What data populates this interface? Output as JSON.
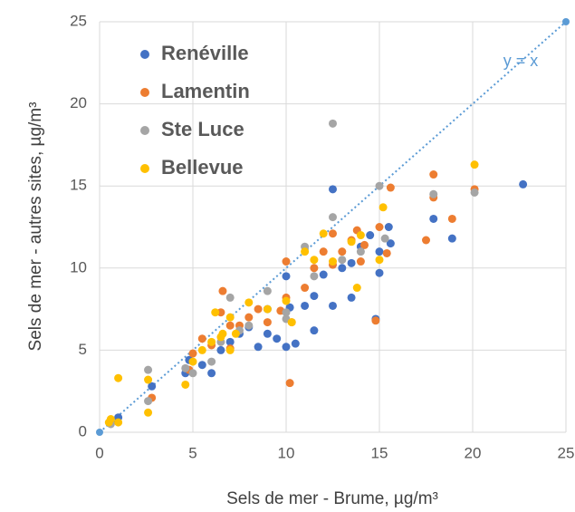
{
  "chart_data": {
    "type": "scatter",
    "xlabel": "Sels de mer - Brume, µg/m³",
    "ylabel": "Sels de mer - autres sites, µg/m³",
    "xlim": [
      0,
      25
    ],
    "ylim": [
      0,
      25
    ],
    "xticks": [
      0,
      5,
      10,
      15,
      20,
      25
    ],
    "yticks": [
      0,
      5,
      10,
      15,
      20,
      25
    ],
    "grid": true,
    "legend": "upper left",
    "series": [
      {
        "name": "Renéville",
        "color": "#4472c4",
        "x": [
          0.6,
          1,
          2.8,
          4.6,
          4.8,
          5.5,
          6,
          6.5,
          7,
          7.5,
          8,
          8.5,
          9,
          9.5,
          10,
          10.2,
          10.5,
          11,
          11.5,
          11.5,
          12,
          12.5,
          12.5,
          13,
          13.5,
          13.5,
          14,
          14.5,
          14.8,
          15,
          15,
          15.5,
          15.6,
          17.9,
          18.9,
          22.7,
          10,
          9
        ],
        "y": [
          0.6,
          0.9,
          2.8,
          3.6,
          4.4,
          4.1,
          3.6,
          5.0,
          5.5,
          6.0,
          6.4,
          5.2,
          6.0,
          5.7,
          5.2,
          7.6,
          5.4,
          7.7,
          8.3,
          6.2,
          9.6,
          7.7,
          14.8,
          10.0,
          8.2,
          10.3,
          11.3,
          12.0,
          6.9,
          9.7,
          11.0,
          12.5,
          11.5,
          13.0,
          11.8,
          15.1,
          9.5,
          7.5
        ]
      },
      {
        "name": "Lamentin",
        "color": "#ed7d31",
        "x": [
          2.8,
          4.8,
          5,
          5.5,
          6,
          6.5,
          6.6,
          7,
          7.5,
          8,
          9,
          9.7,
          10,
          10,
          10.2,
          10.3,
          11,
          11.5,
          12,
          12.5,
          12.5,
          13,
          13.5,
          13.8,
          14,
          14.2,
          14.8,
          15,
          15.4,
          15.6,
          17.5,
          17.9,
          17.9,
          18.9,
          20.1,
          7,
          8.5
        ],
        "y": [
          2.1,
          3.8,
          4.8,
          5.7,
          5.3,
          7.3,
          8.6,
          6.5,
          6.5,
          7.0,
          6.7,
          7.4,
          8.2,
          10.4,
          3.0,
          6.7,
          8.8,
          10.0,
          11.0,
          10.2,
          12.1,
          11.0,
          11.7,
          12.3,
          10.4,
          11.4,
          6.8,
          12.5,
          10.9,
          14.9,
          11.7,
          14.3,
          15.7,
          13.0,
          14.8,
          5.1,
          7.5
        ]
      },
      {
        "name": "Ste Luce",
        "color": "#a5a5a5",
        "x": [
          0.6,
          2.6,
          2.6,
          4.6,
          5,
          6,
          6.5,
          7,
          7.5,
          8,
          9,
          10,
          11,
          11.5,
          12.5,
          12.5,
          13,
          14,
          15,
          15.3,
          17.9,
          20.1,
          10
        ],
        "y": [
          0.5,
          3.8,
          1.9,
          3.9,
          3.6,
          4.3,
          5.5,
          8.2,
          6.2,
          6.5,
          8.6,
          6.9,
          11.3,
          9.5,
          18.8,
          13.1,
          10.5,
          11.0,
          15.0,
          11.8,
          14.5,
          14.6,
          7.3
        ]
      },
      {
        "name": "Bellevue",
        "color": "#ffc000",
        "x": [
          0.5,
          0.6,
          1,
          1,
          2.6,
          2.6,
          4.6,
          5,
          5.5,
          6,
          6.2,
          6.6,
          7,
          7.3,
          8,
          9,
          10,
          10.3,
          11,
          11.5,
          12,
          12.5,
          13.5,
          13.8,
          14,
          15,
          15.2,
          20.1,
          7,
          6.5
        ],
        "y": [
          0.6,
          0.8,
          0.6,
          3.3,
          1.2,
          3.2,
          2.9,
          4.3,
          5.0,
          5.5,
          7.3,
          6.0,
          7.0,
          6.0,
          7.9,
          7.5,
          8.0,
          6.7,
          11.0,
          10.5,
          12.1,
          10.4,
          11.6,
          8.8,
          12.0,
          10.5,
          13.7,
          16.3,
          5.0,
          5.8
        ]
      }
    ],
    "reference_line": {
      "label": "y = x",
      "color": "#5b9bd5",
      "x": [
        0,
        25
      ],
      "y": [
        0,
        25
      ]
    }
  }
}
